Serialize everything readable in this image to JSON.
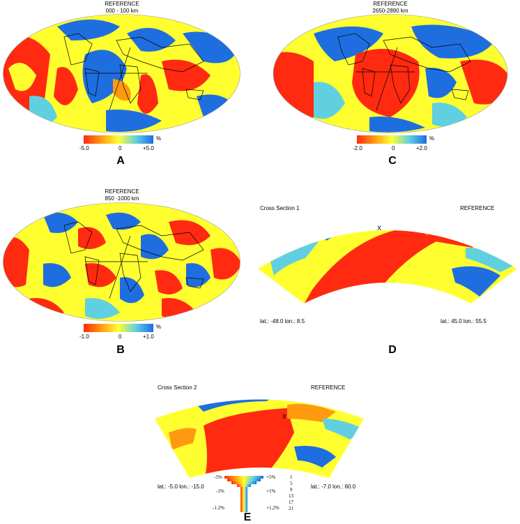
{
  "panels": {
    "A": {
      "title1": "REFERENCE",
      "title2": "000 - 100 km",
      "cb_min": "-5.0",
      "cb_mid": "0",
      "cb_max": "+5.0",
      "cb_unit": "%",
      "letter": "A"
    },
    "B": {
      "title1": "REFERENCE",
      "title2": "850 -1000 km",
      "cb_min": "-1.0",
      "cb_mid": "0",
      "cb_max": "+1.0",
      "cb_unit": "%",
      "letter": "B"
    },
    "C": {
      "title1": "REFERENCE",
      "title2": "2650-2890 km",
      "cb_min": "-2.0",
      "cb_mid": "0",
      "cb_max": "+2.0",
      "cb_unit": "%",
      "letter": "C"
    },
    "D": {
      "section": "Cross Section 1",
      "model": "REFERENCE",
      "left_lat": "lat.:  -48.0  lon.:    8.5",
      "right_lat": "lat.:  45.0  lon.:   55.5",
      "marker": "X",
      "letter": "D"
    },
    "E": {
      "section": "Cross Section 2",
      "model": "REFERENCE",
      "left_lat": "lat.:  -5.0  lon.:  -15.0",
      "right_lat": "lat.:  -7.0  lon.:   60.0",
      "marker": "X",
      "letter": "E",
      "scale_left": [
        "-5%",
        "-1%",
        "-1.2%"
      ],
      "scale_right": [
        "+5%",
        "+1%",
        "+1.2%"
      ],
      "scale_depth": [
        "1",
        "5",
        "9",
        "13",
        "17",
        "21"
      ]
    }
  },
  "colors": {
    "red": "#ff2a10",
    "orange": "#ff9a10",
    "yellow": "#ffff30",
    "cyan": "#60d0e0",
    "blue": "#1e6ee0",
    "teal": "#40c0b0"
  }
}
